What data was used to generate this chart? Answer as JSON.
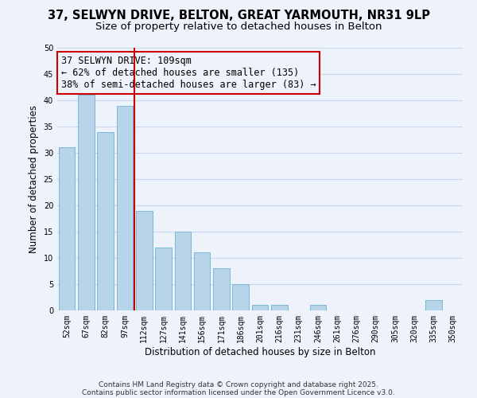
{
  "title": "37, SELWYN DRIVE, BELTON, GREAT YARMOUTH, NR31 9LP",
  "subtitle": "Size of property relative to detached houses in Belton",
  "xlabel": "Distribution of detached houses by size in Belton",
  "ylabel": "Number of detached properties",
  "bar_color": "#b8d4e8",
  "bar_edge_color": "#7ab8d4",
  "categories": [
    "52sqm",
    "67sqm",
    "82sqm",
    "97sqm",
    "112sqm",
    "127sqm",
    "141sqm",
    "156sqm",
    "171sqm",
    "186sqm",
    "201sqm",
    "216sqm",
    "231sqm",
    "246sqm",
    "261sqm",
    "276sqm",
    "290sqm",
    "305sqm",
    "320sqm",
    "335sqm",
    "350sqm"
  ],
  "values": [
    31,
    41,
    34,
    39,
    19,
    12,
    15,
    11,
    8,
    5,
    1,
    1,
    0,
    1,
    0,
    0,
    0,
    0,
    0,
    2,
    0
  ],
  "ylim": [
    0,
    50
  ],
  "yticks": [
    0,
    5,
    10,
    15,
    20,
    25,
    30,
    35,
    40,
    45,
    50
  ],
  "vline_color": "#cc0000",
  "vline_x_index": 4,
  "annotation_line1": "37 SELWYN DRIVE: 109sqm",
  "annotation_line2": "← 62% of detached houses are smaller (135)",
  "annotation_line3": "38% of semi-detached houses are larger (83) →",
  "footer_line1": "Contains HM Land Registry data © Crown copyright and database right 2025.",
  "footer_line2": "Contains public sector information licensed under the Open Government Licence v3.0.",
  "bg_color": "#eef2fb",
  "grid_color": "#c8d8ee",
  "title_fontsize": 10.5,
  "subtitle_fontsize": 9.5,
  "annot_fontsize": 8.5,
  "tick_fontsize": 7,
  "ylabel_fontsize": 8.5,
  "xlabel_fontsize": 8.5,
  "footer_fontsize": 6.5
}
